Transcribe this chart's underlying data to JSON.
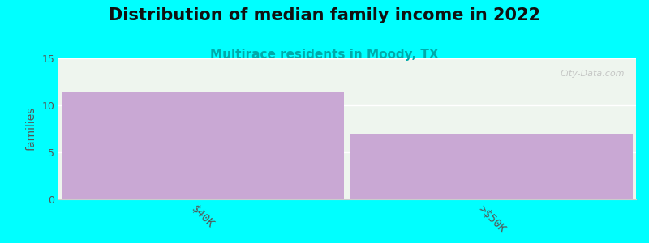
{
  "title": "Distribution of median family income in 2022",
  "subtitle": "Multirace residents in Moody, TX",
  "categories": [
    "$40K",
    ">$50K"
  ],
  "values": [
    11.5,
    7.0
  ],
  "bar_color": "#c9a8d4",
  "background_color": "#00ffff",
  "plot_bg_color": "#eef5ee",
  "ylabel": "families",
  "ylim": [
    0,
    15
  ],
  "yticks": [
    0,
    5,
    10,
    15
  ],
  "title_fontsize": 15,
  "subtitle_fontsize": 11,
  "subtitle_color": "#00aaaa",
  "title_color": "#111111",
  "tick_label_rotation": -45,
  "bar_width": 0.98,
  "watermark": "City-Data.com"
}
